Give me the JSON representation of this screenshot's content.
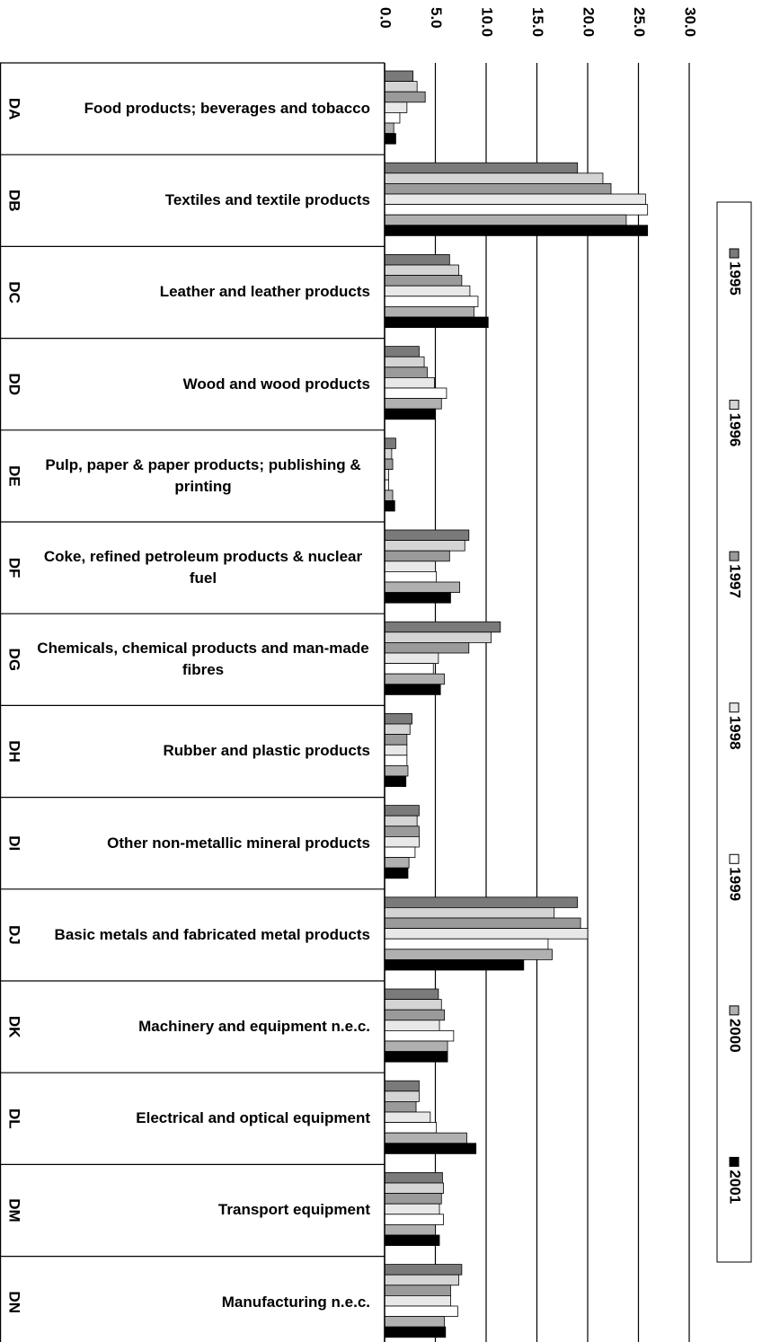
{
  "chart_data": {
    "type": "bar",
    "orientation": "horizontal",
    "categories": [
      "Food products; beverages and tobacco",
      "Textiles and textile products",
      "Leather and leather products",
      "Wood and wood products",
      "Pulp, paper & paper products; publishing & printing",
      "Coke, refined petroleum products & nuclear fuel",
      "Chemicals, chemical products and man-made fibres",
      "Rubber and plastic products",
      "Other non-metallic mineral products",
      "Basic metals and fabricated metal products",
      "Machinery and equipment n.e.c.",
      "Electrical and optical equipment",
      "Transport equipment",
      "Manufacturing n.e.c."
    ],
    "category_codes": [
      "DA",
      "DB",
      "DC",
      "DD",
      "DE",
      "DF",
      "DG",
      "DH",
      "DI",
      "DJ",
      "DK",
      "DL",
      "DM",
      "DN"
    ],
    "series": [
      {
        "name": "1995",
        "color": "#7a7a7a",
        "values": [
          2.8,
          19.0,
          6.4,
          3.4,
          1.1,
          8.3,
          11.4,
          2.7,
          3.4,
          19.0,
          5.3,
          3.4,
          5.7,
          7.6
        ]
      },
      {
        "name": "1996",
        "color": "#d4d4d4",
        "values": [
          3.2,
          21.5,
          7.3,
          3.9,
          0.7,
          7.9,
          10.5,
          2.5,
          3.2,
          16.7,
          5.6,
          3.4,
          5.8,
          7.3
        ]
      },
      {
        "name": "1997",
        "color": "#9a9a9a",
        "values": [
          4.0,
          22.3,
          7.6,
          4.2,
          0.8,
          6.4,
          8.3,
          2.2,
          3.4,
          19.3,
          5.9,
          3.1,
          5.6,
          6.5
        ]
      },
      {
        "name": "1998",
        "color": "#e8e8e8",
        "values": [
          2.2,
          25.7,
          8.4,
          4.9,
          0.4,
          5.0,
          5.3,
          2.2,
          3.4,
          20.0,
          5.4,
          4.5,
          5.4,
          6.5
        ]
      },
      {
        "name": "1999",
        "color": "#ffffff",
        "values": [
          1.5,
          25.9,
          9.2,
          6.1,
          0.4,
          5.1,
          4.8,
          2.2,
          3.0,
          16.1,
          6.8,
          5.1,
          5.8,
          7.2
        ]
      },
      {
        "name": "2000",
        "color": "#b0b0b0",
        "values": [
          0.9,
          23.8,
          8.8,
          5.6,
          0.8,
          7.4,
          5.9,
          2.3,
          2.4,
          16.5,
          6.2,
          8.1,
          5.0,
          5.9
        ]
      },
      {
        "name": "2001",
        "color": "#000000",
        "values": [
          1.1,
          25.9,
          10.2,
          5.0,
          1.0,
          6.5,
          5.5,
          2.1,
          2.3,
          13.7,
          6.2,
          9.0,
          5.4,
          6.0
        ]
      }
    ],
    "xlim": [
      0,
      30
    ],
    "xticks": [
      {
        "value": 0,
        "label": "0.0"
      },
      {
        "value": 5,
        "label": "5.0"
      },
      {
        "value": 10,
        "label": "10.0"
      },
      {
        "value": 15,
        "label": "15.0"
      },
      {
        "value": 20,
        "label": "20.0"
      },
      {
        "value": 25,
        "label": "25.0"
      },
      {
        "value": 30,
        "label": "30.0"
      }
    ],
    "grid": true,
    "legend": "right"
  }
}
